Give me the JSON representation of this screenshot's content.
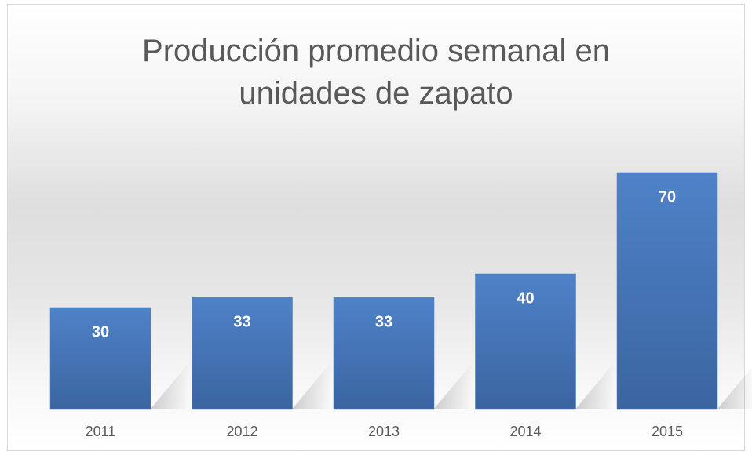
{
  "chart_data": {
    "type": "bar",
    "title": "Producción promedio semanal en unidades de zapato",
    "categories": [
      "2011",
      "2012",
      "2013",
      "2014",
      "2015"
    ],
    "values": [
      30,
      33,
      33,
      40,
      70
    ],
    "color": "#4a78b8"
  }
}
